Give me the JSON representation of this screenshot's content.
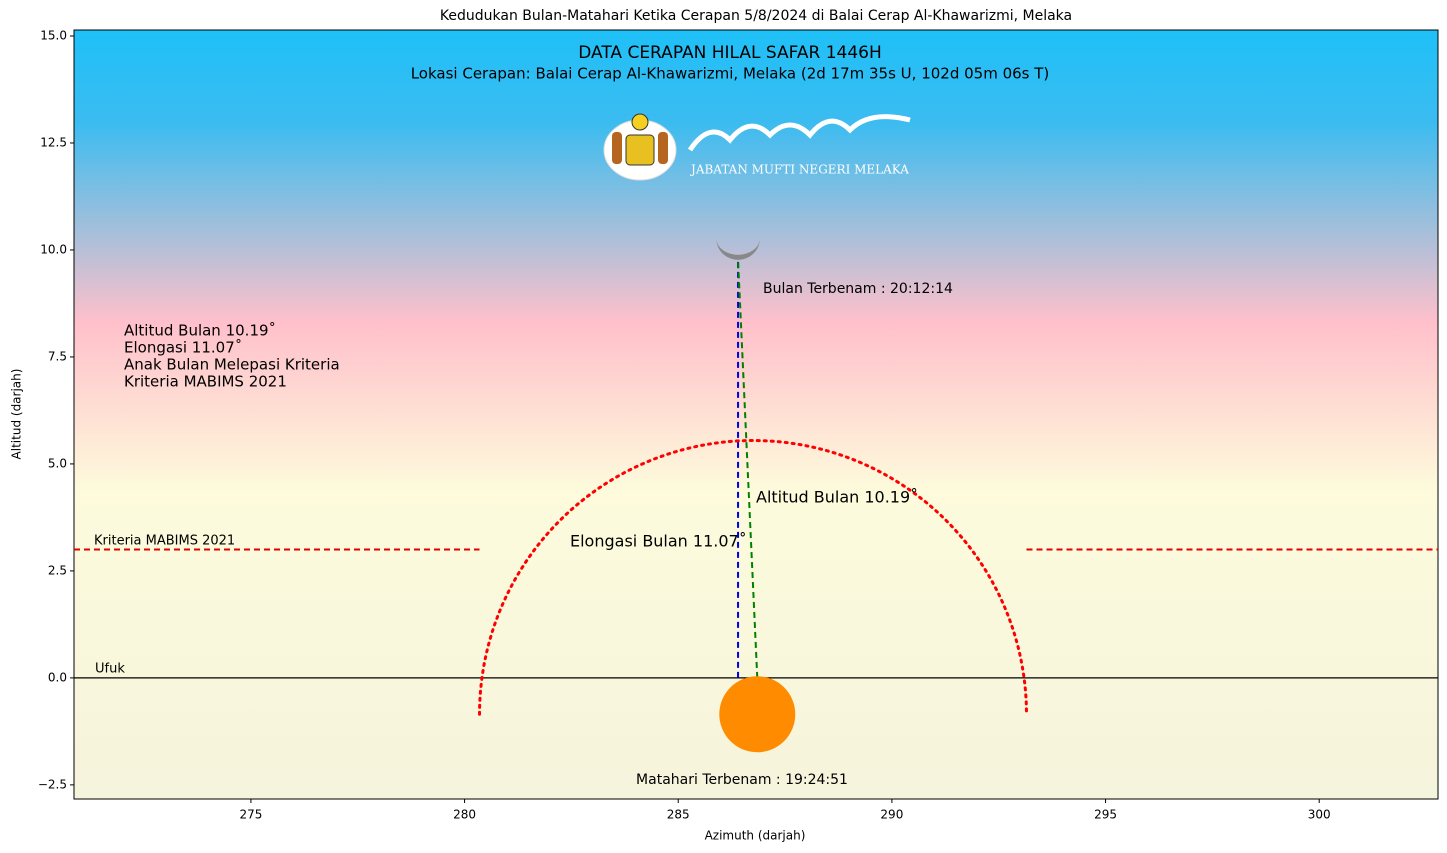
{
  "chart_data": {
    "type": "moon-sighting",
    "title": "Kedudukan Bulan-Matahari Ketika Cerapan 5/8/2024 di Balai Cerap Al-Khawarizmi, Melaka",
    "heading": "DATA CERAPAN HILAL SAFAR 1446H",
    "location": "Lokasi Cerapan: Balai Cerap Al-Khawarizmi, Melaka  (2d 17m 35s U, 102d 05m 06s T)",
    "logo_text": "JABATAN MUFTI NEGERI MELAKA",
    "x_label": "Azimuth (darjah)",
    "y_label": "Altitud (darjah)",
    "xlim": [
      270.86,
      302.78
    ],
    "ylim": [
      -2.83,
      15.14
    ],
    "xticks": [
      275,
      280,
      285,
      290,
      295,
      300
    ],
    "yticks": [
      {
        "value": -2.5,
        "label": "−2.5"
      },
      {
        "value": 0,
        "label": "0.0"
      },
      {
        "value": 2.5,
        "label": "2.5"
      },
      {
        "value": 5,
        "label": "5.0"
      },
      {
        "value": 7.5,
        "label": "7.5"
      },
      {
        "value": 10,
        "label": "10.0"
      },
      {
        "value": 12.5,
        "label": "12.5"
      },
      {
        "value": 15,
        "label": "15.0"
      }
    ],
    "moon": {
      "x": 286.4,
      "y": 10.19,
      "color": "#888888"
    },
    "sun": {
      "x": 286.85,
      "y": -0.85,
      "color": "#ff8c00"
    },
    "lines": [
      {
        "x": [
          270.86,
          302.78
        ],
        "y": [
          0,
          0
        ],
        "color": "#000000",
        "style": "solid"
      },
      {
        "x": [
          270.86,
          280.35
        ],
        "y": [
          3,
          3
        ],
        "color": "#e00000",
        "style": "dashed"
      },
      {
        "x": [
          293.15,
          302.78
        ],
        "y": [
          3,
          3
        ],
        "color": "#e00000",
        "style": "dashed"
      },
      {
        "x": [
          286.4,
          286.4
        ],
        "y": [
          0,
          9.75
        ],
        "color": "#0000e0",
        "style": "dashed"
      },
      {
        "x": [
          286.85,
          286.4
        ],
        "y": [
          0,
          9.75
        ],
        "color": "#008000",
        "style": "dashed"
      }
    ],
    "arc": {
      "x": 286.75,
      "y": -0.85,
      "radius": 6.4,
      "color": "#ff0000"
    },
    "info": [
      "Altitud Bulan 10.19˚",
      "Elongasi  11.07˚",
      "Anak Bulan Melepasi Kriteria",
      "Kriteria MABIMS 2021"
    ],
    "moonset": "Bulan Terbenam : 20:12:14",
    "sunset": "Matahari Terbenam : 19:24:51",
    "altitude_label": "Altitud Bulan 10.19˚",
    "elongation_label": "Elongasi Bulan 11.07˚",
    "criteria_label": "Kriteria MABIMS 2021",
    "horizon_label": "Ufuk"
  }
}
